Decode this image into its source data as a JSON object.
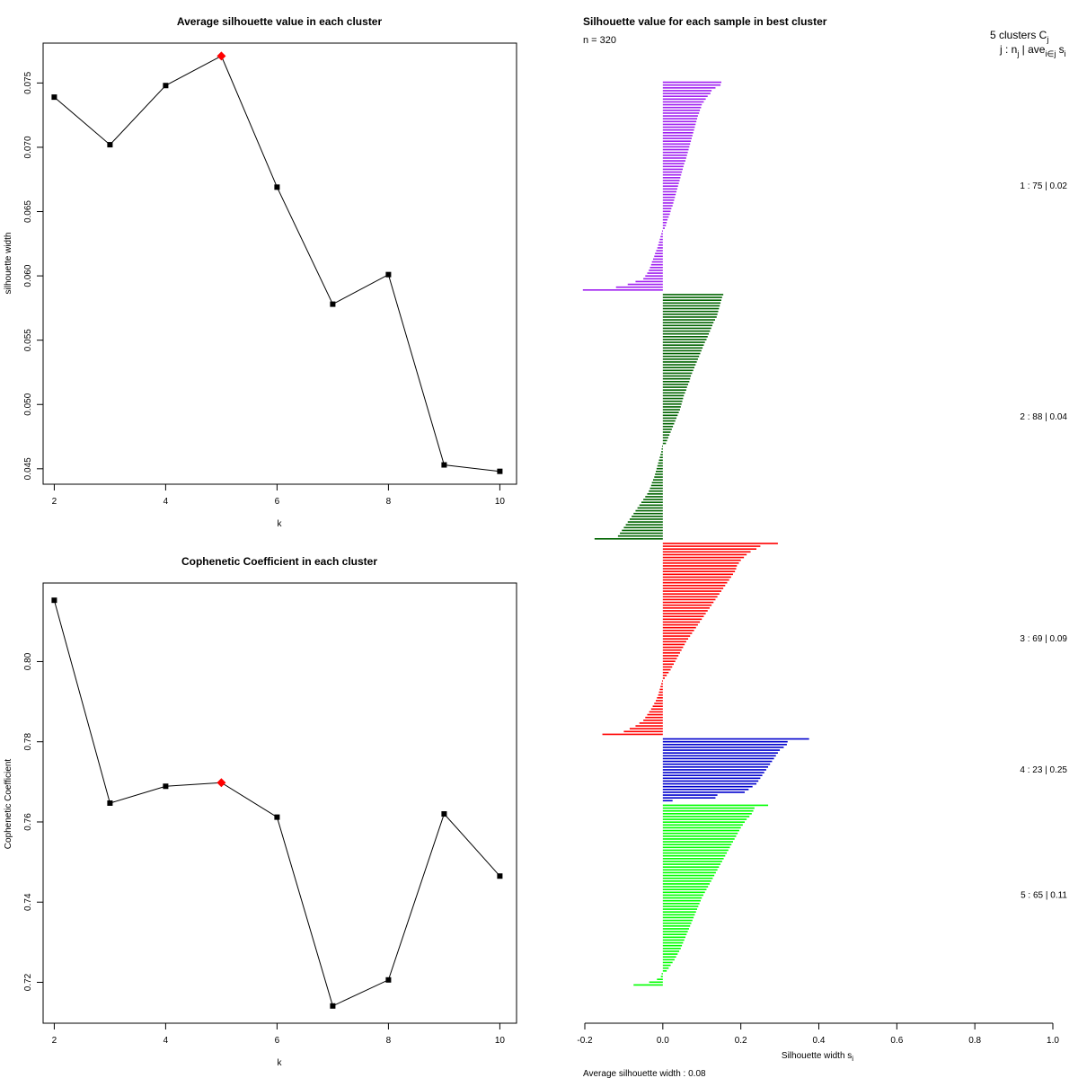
{
  "chart_data": [
    {
      "type": "line",
      "title": "Average silhouette value in each cluster",
      "xlabel": "k",
      "ylabel": "silhouette width",
      "x": [
        2,
        3,
        4,
        5,
        6,
        7,
        8,
        9,
        10
      ],
      "values": [
        0.0739,
        0.0702,
        0.0748,
        0.0771,
        0.0669,
        0.0578,
        0.0601,
        0.0453,
        0.0448
      ],
      "highlight_x": 5,
      "xlim": [
        1.8,
        10.3
      ],
      "ylim": [
        0.0438,
        0.0781
      ],
      "xticks": [
        2,
        4,
        6,
        8,
        10
      ],
      "xtick_labels": [
        "2",
        "4",
        "6",
        "8",
        "10"
      ],
      "yticks": [
        0.045,
        0.05,
        0.055,
        0.06,
        0.065,
        0.07,
        0.075
      ],
      "ytick_labels": [
        "0.045",
        "0.050",
        "0.055",
        "0.060",
        "0.065",
        "0.070",
        "0.075"
      ],
      "marker_color": "#000000",
      "highlight_color": "#ff0000"
    },
    {
      "type": "line",
      "title": "Cophenetic Coefficient in each cluster",
      "xlabel": "k",
      "ylabel": "Cophenetic Coefficient",
      "x": [
        2,
        3,
        4,
        5,
        6,
        7,
        8,
        9,
        10
      ],
      "values": [
        0.8153,
        0.7647,
        0.7689,
        0.7698,
        0.7612,
        0.7141,
        0.7206,
        0.762,
        0.7465
      ],
      "highlight_x": 5,
      "xlim": [
        1.8,
        10.3
      ],
      "ylim": [
        0.7098,
        0.8196
      ],
      "xticks": [
        2,
        4,
        6,
        8,
        10
      ],
      "xtick_labels": [
        "2",
        "4",
        "6",
        "8",
        "10"
      ],
      "yticks": [
        0.72,
        0.74,
        0.76,
        0.78,
        0.8
      ],
      "ytick_labels": [
        "0.72",
        "0.74",
        "0.76",
        "0.78",
        "0.80"
      ],
      "marker_color": "#000000",
      "highlight_color": "#ff0000"
    },
    {
      "type": "bar",
      "orientation": "horizontal",
      "title": "Silhouette value for each sample in best cluster",
      "n_label": "n = 320",
      "xlabel": "Silhouette width s",
      "xlabel_sub": "i",
      "xlim": [
        -0.2,
        1.0
      ],
      "xticks": [
        -0.2,
        0.0,
        0.2,
        0.4,
        0.6,
        0.8,
        1.0
      ],
      "xtick_labels": [
        "-0.2",
        "0.0",
        "0.2",
        "0.4",
        "0.6",
        "0.8",
        "1.0"
      ],
      "legend_header": "5  clusters  C",
      "legend_header_sub": "j",
      "legend_subheader": "j :  n",
      "legend_subheader_rest": " | ave",
      "legend_subheader_tail": "  s",
      "legend_subheader_sub": "j",
      "legend_subheader_sub2": "i∈j",
      "legend_subheader_sub3": "i",
      "average_label": "Average silhouette width :  0.08",
      "clusters": [
        {
          "id": 1,
          "n": 75,
          "avg": 0.02,
          "label": "1 :   75  |  0.02",
          "color": "#a020f0",
          "values": [
            0.15,
            0.148,
            0.135,
            0.125,
            0.122,
            0.115,
            0.11,
            0.105,
            0.1,
            0.098,
            0.095,
            0.093,
            0.09,
            0.088,
            0.086,
            0.084,
            0.082,
            0.08,
            0.078,
            0.076,
            0.074,
            0.072,
            0.07,
            0.068,
            0.066,
            0.064,
            0.062,
            0.06,
            0.058,
            0.055,
            0.053,
            0.051,
            0.049,
            0.047,
            0.045,
            0.043,
            0.041,
            0.039,
            0.037,
            0.035,
            0.033,
            0.031,
            0.029,
            0.027,
            0.025,
            0.022,
            0.02,
            0.018,
            0.015,
            0.012,
            0.01,
            0.008,
            0.005,
            -0.002,
            -0.004,
            -0.006,
            -0.008,
            -0.01,
            -0.012,
            -0.014,
            -0.017,
            -0.02,
            -0.022,
            -0.025,
            -0.028,
            -0.03,
            -0.033,
            -0.036,
            -0.04,
            -0.045,
            -0.05,
            -0.07,
            -0.09,
            -0.12,
            -0.205
          ]
        },
        {
          "id": 2,
          "n": 88,
          "avg": 0.04,
          "label": "2 :   88  |  0.04",
          "color": "#006400",
          "values": [
            0.155,
            0.152,
            0.15,
            0.148,
            0.146,
            0.144,
            0.142,
            0.14,
            0.138,
            0.134,
            0.13,
            0.127,
            0.124,
            0.121,
            0.118,
            0.115,
            0.112,
            0.108,
            0.105,
            0.102,
            0.099,
            0.096,
            0.093,
            0.09,
            0.087,
            0.084,
            0.081,
            0.078,
            0.075,
            0.072,
            0.07,
            0.068,
            0.065,
            0.062,
            0.06,
            0.057,
            0.054,
            0.052,
            0.05,
            0.048,
            0.046,
            0.044,
            0.041,
            0.038,
            0.035,
            0.032,
            0.029,
            0.026,
            0.023,
            0.02,
            0.017,
            0.014,
            0.011,
            0.008,
            -0.002,
            -0.003,
            -0.004,
            -0.006,
            -0.008,
            -0.01,
            -0.012,
            -0.014,
            -0.016,
            -0.018,
            -0.02,
            -0.022,
            -0.025,
            -0.028,
            -0.03,
            -0.033,
            -0.036,
            -0.04,
            -0.045,
            -0.05,
            -0.055,
            -0.06,
            -0.065,
            -0.07,
            -0.075,
            -0.08,
            -0.085,
            -0.09,
            -0.095,
            -0.1,
            -0.105,
            -0.11,
            -0.115,
            -0.175
          ]
        },
        {
          "id": 3,
          "n": 69,
          "avg": 0.09,
          "label": "3 :   69  |  0.09",
          "color": "#ff0000",
          "values": [
            0.295,
            0.25,
            0.24,
            0.225,
            0.215,
            0.208,
            0.2,
            0.195,
            0.19,
            0.188,
            0.185,
            0.18,
            0.175,
            0.17,
            0.165,
            0.16,
            0.155,
            0.15,
            0.145,
            0.14,
            0.135,
            0.13,
            0.125,
            0.12,
            0.115,
            0.11,
            0.105,
            0.1,
            0.095,
            0.09,
            0.085,
            0.08,
            0.075,
            0.07,
            0.065,
            0.06,
            0.056,
            0.052,
            0.048,
            0.044,
            0.04,
            0.036,
            0.032,
            0.028,
            0.024,
            0.02,
            0.015,
            0.01,
            0.005,
            -0.002,
            -0.004,
            -0.006,
            -0.008,
            -0.01,
            -0.012,
            -0.015,
            -0.018,
            -0.022,
            -0.026,
            -0.03,
            -0.035,
            -0.04,
            -0.045,
            -0.05,
            -0.06,
            -0.07,
            -0.085,
            -0.1,
            -0.155
          ]
        },
        {
          "id": 4,
          "n": 23,
          "avg": 0.25,
          "label": "4 :   23  |  0.25",
          "color": "#0000cd",
          "values": [
            0.375,
            0.32,
            0.318,
            0.31,
            0.3,
            0.295,
            0.29,
            0.285,
            0.28,
            0.275,
            0.27,
            0.265,
            0.26,
            0.255,
            0.25,
            0.245,
            0.24,
            0.23,
            0.22,
            0.21,
            0.14,
            0.135,
            0.025
          ]
        },
        {
          "id": 5,
          "n": 65,
          "avg": 0.11,
          "label": "5 :   65  |  0.11",
          "color": "#00ff00",
          "values": [
            0.27,
            0.235,
            0.232,
            0.228,
            0.222,
            0.215,
            0.21,
            0.205,
            0.2,
            0.196,
            0.192,
            0.188,
            0.184,
            0.18,
            0.176,
            0.172,
            0.168,
            0.164,
            0.16,
            0.156,
            0.152,
            0.148,
            0.144,
            0.14,
            0.136,
            0.132,
            0.128,
            0.124,
            0.12,
            0.116,
            0.112,
            0.108,
            0.104,
            0.1,
            0.097,
            0.094,
            0.091,
            0.088,
            0.085,
            0.082,
            0.079,
            0.076,
            0.073,
            0.07,
            0.067,
            0.064,
            0.061,
            0.058,
            0.055,
            0.052,
            0.049,
            0.046,
            0.042,
            0.038,
            0.034,
            0.03,
            0.025,
            0.02,
            0.015,
            0.01,
            -0.003,
            -0.005,
            -0.015,
            -0.035,
            -0.075
          ]
        }
      ]
    }
  ]
}
